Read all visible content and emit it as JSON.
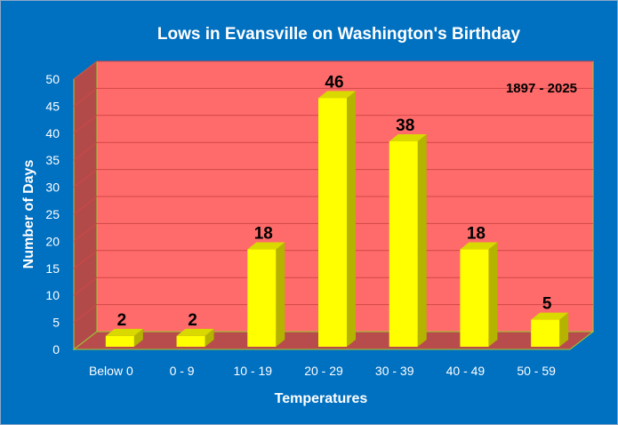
{
  "chart_data": {
    "type": "bar",
    "title": "Lows in Evansville on Washington's Birthday",
    "annotation": "1897 - 2025",
    "xlabel": "Temperatures",
    "ylabel": "Number of Days",
    "categories": [
      "Below 0",
      "0 - 9",
      "10 - 19",
      "20 - 29",
      "30 - 39",
      "40 - 49",
      "50 - 59"
    ],
    "values": [
      2,
      2,
      18,
      46,
      38,
      18,
      5
    ],
    "ylim": [
      0,
      50
    ],
    "yticks": [
      "0",
      "5",
      "10",
      "15",
      "20",
      "25",
      "30",
      "35",
      "40",
      "45",
      "50"
    ],
    "grid": true,
    "legend": "none",
    "style": "3d-column",
    "colors": {
      "background": "#0070c0",
      "plot_back_wall": "#ff6b6b",
      "plot_side_wall": "#b24a4a",
      "plot_floor": "#b84c4c",
      "bar_front": "#ffff00",
      "bar_side": "#b3b300",
      "bar_top": "#d9d900",
      "axis_text": "#ffffff",
      "data_label": "#000000",
      "gridline": "#d04848",
      "wall_edge": "#9acd32"
    }
  }
}
